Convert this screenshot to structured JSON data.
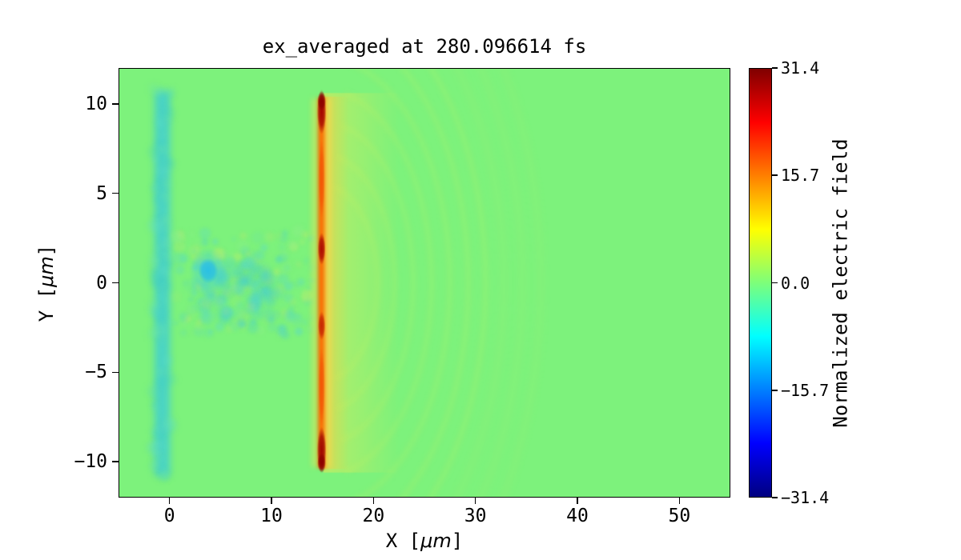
{
  "chart_data": {
    "type": "heatmap",
    "title": "ex_averaged at 280.096614 fs",
    "time_label_fs": 280.096614,
    "xlabel_parts": {
      "pre": "X [",
      "math": "μm",
      "post": "]"
    },
    "ylabel_parts": {
      "pre": "Y [",
      "math": "μm",
      "post": "]"
    },
    "xlim": [
      -5,
      55
    ],
    "ylim": [
      -12,
      12
    ],
    "x_ticks": [
      0,
      10,
      20,
      30,
      40,
      50
    ],
    "x_tick_labels": [
      "0",
      "10",
      "20",
      "30",
      "40",
      "50"
    ],
    "y_ticks": [
      -10,
      -5,
      0,
      5,
      10
    ],
    "y_tick_labels": [
      "−10",
      "−5",
      "0",
      "5",
      "10"
    ],
    "grid": false,
    "colorbar": {
      "label": "Normalized electric field",
      "vmin": -31.4,
      "vmax": 31.4,
      "ticks": [
        31.4,
        15.7,
        0.0,
        -15.7,
        -31.4
      ],
      "tick_labels": [
        "31.4",
        "15.7",
        "0.0",
        "−15.7",
        "−31.4"
      ],
      "colormap": "jet",
      "stops": [
        {
          "pos": 0.0,
          "color": "#000080"
        },
        {
          "pos": 0.125,
          "color": "#0000ff"
        },
        {
          "pos": 0.375,
          "color": "#00ffff"
        },
        {
          "pos": 0.5,
          "color": "#7dff7a"
        },
        {
          "pos": 0.625,
          "color": "#ffff00"
        },
        {
          "pos": 0.875,
          "color": "#ff0000"
        },
        {
          "pos": 1.0,
          "color": "#800000"
        }
      ]
    },
    "background_field_value": 0.0,
    "field_features": [
      {
        "name": "background-zero-field",
        "type": "background",
        "color": "#7df27c"
      },
      {
        "name": "left-plasma-surface",
        "type": "rect",
        "x0": -1.45,
        "x1": 0.05,
        "y0": -10.75,
        "y1": 10.7,
        "color": "#48d3ca",
        "alpha": 0.92,
        "blur": 4
      },
      {
        "name": "left-surface-mottle",
        "type": "noise",
        "x0": -1.7,
        "x1": 0.3,
        "y0": -10.9,
        "y1": 10.9,
        "count": 80,
        "seed": 11,
        "rmin": 3,
        "rmax": 9,
        "palette": [
          "#41cfc5",
          "#60dfc8",
          "#6fe8a6"
        ],
        "alphamin": 0.12,
        "alphamax": 0.35,
        "blur": 3
      },
      {
        "name": "interaction-channel-turbulence",
        "type": "noise",
        "x0": 0.3,
        "x1": 14.2,
        "y0": -2.9,
        "y1": 2.9,
        "count": 220,
        "seed": 5,
        "rmin": 2,
        "rmax": 8,
        "palette": [
          "#49d2cf",
          "#5adcc0",
          "#b9ea6c",
          "#8df08a",
          "#4fd4e2",
          "#cdef66"
        ],
        "alphamin": 0.1,
        "alphamax": 0.4,
        "blur": 2
      },
      {
        "name": "channel-cyan-patch",
        "type": "noise",
        "x0": 3.2,
        "x1": 10.5,
        "y0": -1.9,
        "y1": 1.1,
        "count": 70,
        "seed": 9,
        "rmin": 3,
        "rmax": 9,
        "palette": [
          "#3ecbd8",
          "#54d8cf"
        ],
        "alphamin": 0.12,
        "alphamax": 0.35,
        "blur": 3
      },
      {
        "name": "laser-spot-halo",
        "type": "spot",
        "x": 3.8,
        "y": 0.6,
        "rx": 1.9,
        "ry": 1.4,
        "color": "#45d2d8",
        "alpha": 0.45
      },
      {
        "name": "laser-spot",
        "type": "spot",
        "x": 3.8,
        "y": 0.68,
        "rx": 1.0,
        "ry": 0.72,
        "color": "#27bfe8",
        "alpha": 0.95
      },
      {
        "name": "transmitted-glow",
        "type": "hglow",
        "x0": 15.1,
        "x1": 22.5,
        "y0": -10.6,
        "y1": 10.6,
        "color": "#eeea55",
        "alpha": 0.5
      },
      {
        "name": "near-surface-glow",
        "type": "hglow",
        "x0": 15.2,
        "x1": 17.6,
        "y0": -10.4,
        "y1": 10.4,
        "color": "#ffc63e",
        "alpha": 0.5
      },
      {
        "name": "wavefront-arcs",
        "type": "arcs",
        "cx": 14.9,
        "cy": 0,
        "radii": [
          5.5,
          7.2,
          9.0,
          10.8,
          12.6,
          14.4,
          16.1
        ],
        "a0": -78,
        "a1": 78,
        "color": "#e6f257",
        "alpha": 0.15,
        "width": 6,
        "blur": 3
      },
      {
        "name": "outer-wavefront-arcs",
        "type": "arcs",
        "cx": 14.9,
        "cy": 0,
        "radii": [
          17.9,
          19.7,
          21.5
        ],
        "a0": -70,
        "a1": 70,
        "color": "#d9f060",
        "alpha": 0.09,
        "width": 7,
        "blur": 4
      },
      {
        "name": "front-fringe-left",
        "type": "rect",
        "x0": 13.95,
        "x1": 14.55,
        "y0": -10.3,
        "y1": 10.3,
        "color": "#ffe14e",
        "alpha": 0.45,
        "blur": 3
      },
      {
        "name": "front-surface-sheet",
        "type": "rect",
        "x0": 14.55,
        "x1": 15.3,
        "y0": -10.35,
        "y1": 10.35,
        "color": "#ff6a00",
        "alpha": 0.97,
        "blur": 2
      },
      {
        "name": "sheet-right-edge",
        "type": "rect",
        "x0": 15.25,
        "x1": 15.85,
        "y0": -10.3,
        "y1": 10.3,
        "color": "#ffd84e",
        "alpha": 0.55,
        "blur": 3
      },
      {
        "name": "stripe-red-upper",
        "type": "spot",
        "x": 14.92,
        "y": 5.8,
        "rx": 0.32,
        "ry": 2.2,
        "color": "#f03800",
        "alpha": 0.5
      },
      {
        "name": "stripe-red-lower",
        "type": "spot",
        "x": 14.92,
        "y": -5.8,
        "rx": 0.32,
        "ry": 2.2,
        "color": "#f03800",
        "alpha": 0.5
      },
      {
        "name": "hotspot-top",
        "type": "spot",
        "x": 14.92,
        "y": 9.55,
        "rx": 0.45,
        "ry": 1.25,
        "color": "#a00000",
        "alpha": 0.95
      },
      {
        "name": "hotspot-top-cap",
        "type": "spot",
        "x": 14.92,
        "y": 10.15,
        "rx": 0.42,
        "ry": 0.55,
        "color": "#8b0000",
        "alpha": 0.95
      },
      {
        "name": "hotspot-upper-mid",
        "type": "spot",
        "x": 14.92,
        "y": 1.9,
        "rx": 0.38,
        "ry": 0.9,
        "color": "#a50000",
        "alpha": 0.9
      },
      {
        "name": "hotspot-lower-mid",
        "type": "spot",
        "x": 14.92,
        "y": -2.4,
        "rx": 0.36,
        "ry": 0.8,
        "color": "#bf1800",
        "alpha": 0.85
      },
      {
        "name": "hotspot-bottom",
        "type": "spot",
        "x": 14.92,
        "y": -9.35,
        "rx": 0.45,
        "ry": 1.3,
        "color": "#9b0000",
        "alpha": 0.95
      },
      {
        "name": "hotspot-bottom-cap",
        "type": "spot",
        "x": 14.92,
        "y": -10.05,
        "rx": 0.42,
        "ry": 0.55,
        "color": "#8b0000",
        "alpha": 0.95
      }
    ]
  }
}
